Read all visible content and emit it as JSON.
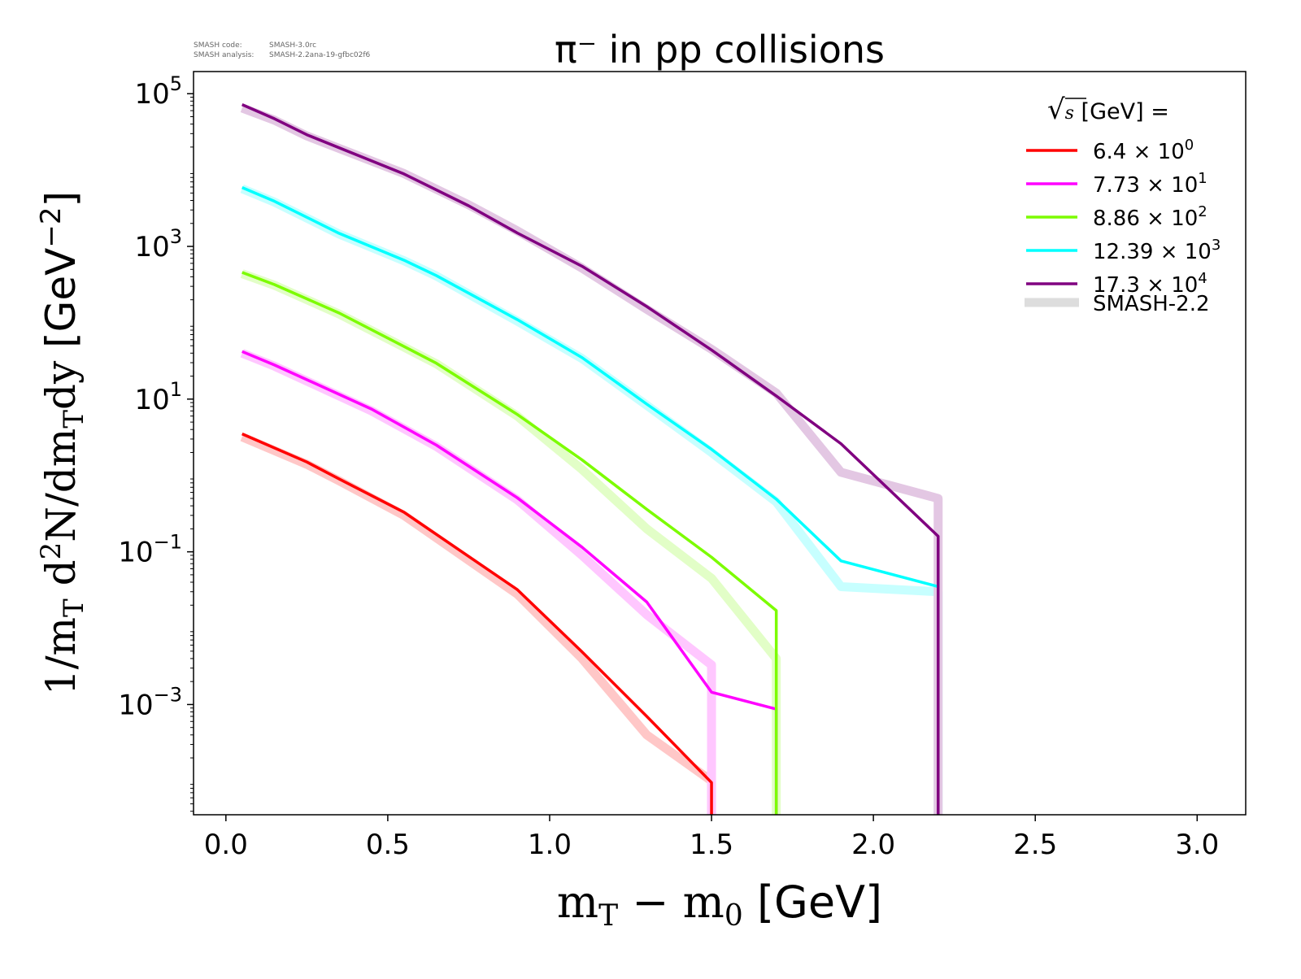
{
  "header": {
    "code_label": "SMASH code:",
    "code_value": "SMASH-3.0rc",
    "analysis_label": "SMASH analysis:",
    "analysis_value": "SMASH-2.2ana-19-gfbc02f6"
  },
  "chart_data": {
    "type": "line",
    "title": "π⁻ in pp collisions",
    "xlabel": "m_T − m_0 [GeV]",
    "xlabel_parts": {
      "a": "m",
      "a_sub": "T",
      "b": " − m",
      "b_sub": "0",
      "unit": " [GeV]"
    },
    "ylabel": "1/m_T d²N/dm_T dy [GeV⁻²]",
    "ylabel_parts": {
      "a": "1/m",
      "a_sub": "T",
      "b": " d",
      "b_sup": "2",
      "c": "N/dm",
      "c_sub": "T",
      "d": "dy",
      "unit": " [GeV",
      "unit_sup": "−2",
      "unit_end": "]"
    },
    "xlim": [
      -0.1,
      3.15
    ],
    "ylim": [
      3.6e-05,
      195000.0
    ],
    "yscale": "log",
    "grid": false,
    "xticks": [
      "0.0",
      "0.5",
      "1.0",
      "1.5",
      "2.0",
      "2.5",
      "3.0"
    ],
    "yticks": [
      {
        "base": "10",
        "exp": "5"
      },
      {
        "base": "10",
        "exp": "3"
      },
      {
        "base": "10",
        "exp": "1"
      },
      {
        "base": "10",
        "exp": "−1"
      },
      {
        "base": "10",
        "exp": "−3"
      }
    ],
    "legend": {
      "placement": "top-right",
      "title_sqrt": "s",
      "title_rest": " [GeV] =",
      "entries": [
        {
          "mant": "6.4",
          "exp": "0",
          "color": "#ff0000"
        },
        {
          "mant": "7.73",
          "exp": "1",
          "color": "#ff00ff"
        },
        {
          "mant": "8.86",
          "exp": "2",
          "color": "#7cfc00"
        },
        {
          "mant": "12.39",
          "exp": "3",
          "color": "#00ffff"
        },
        {
          "mant": "17.3",
          "exp": "4",
          "color": "#800080"
        }
      ],
      "reference_label": "SMASH-2.2",
      "reference_color": "#dddddd"
    },
    "series": [
      {
        "name": "6.4 × 10⁰",
        "color": "#ff0000",
        "x": [
          0.05,
          0.25,
          0.35,
          0.55,
          0.9,
          1.1,
          1.3,
          1.5,
          1.5
        ],
        "y": [
          3.5,
          1.5,
          0.9,
          0.33,
          0.032,
          0.0049,
          0.0007,
          9.5e-05,
          1e-06
        ],
        "ref_y": [
          3.2,
          1.4,
          0.85,
          0.3,
          0.028,
          0.004,
          0.0004,
          0.0001,
          1e-06
        ]
      },
      {
        "name": "7.73 × 10¹",
        "color": "#ff00ff",
        "x": [
          0.05,
          0.15,
          0.45,
          0.65,
          0.9,
          1.1,
          1.3,
          1.5,
          1.7,
          1.7
        ],
        "y": [
          42,
          28,
          7.4,
          2.5,
          0.51,
          0.115,
          0.022,
          0.00145,
          0.00087,
          1e-06
        ],
        "ref_x": [
          0.05,
          0.15,
          0.45,
          0.65,
          0.9,
          1.1,
          1.3,
          1.5,
          1.5
        ],
        "ref_y": [
          40,
          27,
          7.0,
          2.4,
          0.48,
          0.09,
          0.015,
          0.0033,
          1e-06
        ]
      },
      {
        "name": "8.86 × 10²",
        "color": "#7cfc00",
        "x": [
          0.05,
          0.15,
          0.35,
          0.55,
          0.65,
          0.9,
          1.1,
          1.3,
          1.5,
          1.7,
          1.7
        ],
        "y": [
          457,
          316,
          134,
          49,
          29.5,
          6.3,
          1.6,
          0.36,
          0.085,
          0.017,
          1e-06
        ],
        "ref_y": [
          440,
          310,
          130,
          48,
          29,
          6.0,
          1.2,
          0.2,
          0.045,
          0.004,
          1e-06
        ]
      },
      {
        "name": "12.39 × 10³",
        "color": "#00ffff",
        "x": [
          0.05,
          0.15,
          0.35,
          0.55,
          0.65,
          0.9,
          1.1,
          1.3,
          1.5,
          1.7,
          1.9,
          2.2,
          2.2
        ],
        "y": [
          5900,
          3900,
          1480,
          660,
          415,
          110,
          35,
          8.6,
          2.2,
          0.49,
          0.076,
          0.035,
          1e-06
        ],
        "ref_y": [
          5700,
          3800,
          1450,
          650,
          410,
          105,
          34,
          8.3,
          2.0,
          0.45,
          0.035,
          0.03,
          1e-06
        ]
      },
      {
        "name": "17.3 × 10⁴",
        "color": "#800080",
        "x": [
          0.05,
          0.15,
          0.25,
          0.55,
          0.75,
          0.9,
          1.1,
          1.3,
          1.5,
          1.7,
          1.9,
          2.2,
          2.2
        ],
        "y": [
          72000,
          47000,
          29000,
          8900,
          3400,
          1500,
          550,
          163,
          44,
          11,
          2.6,
          0.16,
          1e-06
        ],
        "ref_y": [
          65000,
          45000,
          28000,
          9000,
          3500,
          1600,
          520,
          150,
          45,
          12,
          1.1,
          0.5,
          1e-06
        ]
      }
    ]
  }
}
